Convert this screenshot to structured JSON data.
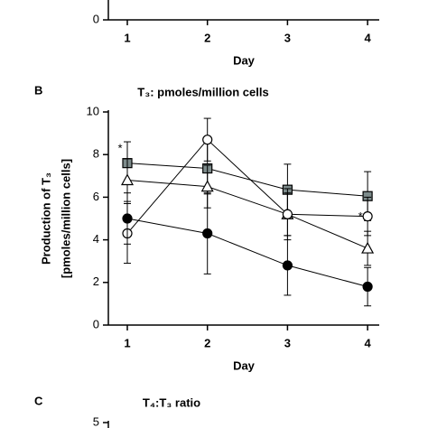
{
  "chart_data": [
    {
      "type": "line",
      "x_label": "Day",
      "categories": [
        "1",
        "2",
        "3",
        "4"
      ],
      "ylim": [
        0,
        2
      ],
      "yticks": [
        0
      ],
      "series": []
    },
    {
      "type": "line",
      "panel_label": "B",
      "title": "T₃: pmoles/million cells",
      "y_label": [
        "Production of T₃",
        "[pmoles/million cells]"
      ],
      "x_label": "Day",
      "categories": [
        "1",
        "2",
        "3",
        "4"
      ],
      "ylim": [
        0,
        10
      ],
      "yticks": [
        0,
        2,
        4,
        6,
        8,
        10
      ],
      "series": [
        {
          "marker": "square",
          "color": "#7d8b8b",
          "values": [
            7.6,
            7.35,
            6.35,
            6.05
          ],
          "errors": [
            1.0,
            1.2,
            1.2,
            1.15
          ]
        },
        {
          "marker": "triangle",
          "color": "#ffffff",
          "values": [
            6.8,
            6.5,
            5.2,
            3.6
          ],
          "errors": [
            1.0,
            1.0,
            1.2,
            0.8
          ]
        },
        {
          "marker": "circle",
          "color": "#ffffff",
          "values": [
            4.3,
            8.7,
            5.2,
            5.1
          ],
          "errors": [
            1.4,
            1.0,
            1.0,
            0.9
          ]
        },
        {
          "marker": "circle",
          "color": "#000000",
          "values": [
            5.0,
            4.3,
            2.8,
            1.8
          ],
          "errors": [
            1.2,
            1.9,
            1.4,
            0.9
          ]
        }
      ],
      "annotations": [
        "*",
        "*"
      ]
    },
    {
      "type": "line",
      "panel_label": "C",
      "title": "T₄:T₃ ratio",
      "ylim": [
        0,
        5
      ],
      "yticks": [
        5
      ],
      "series": []
    }
  ]
}
